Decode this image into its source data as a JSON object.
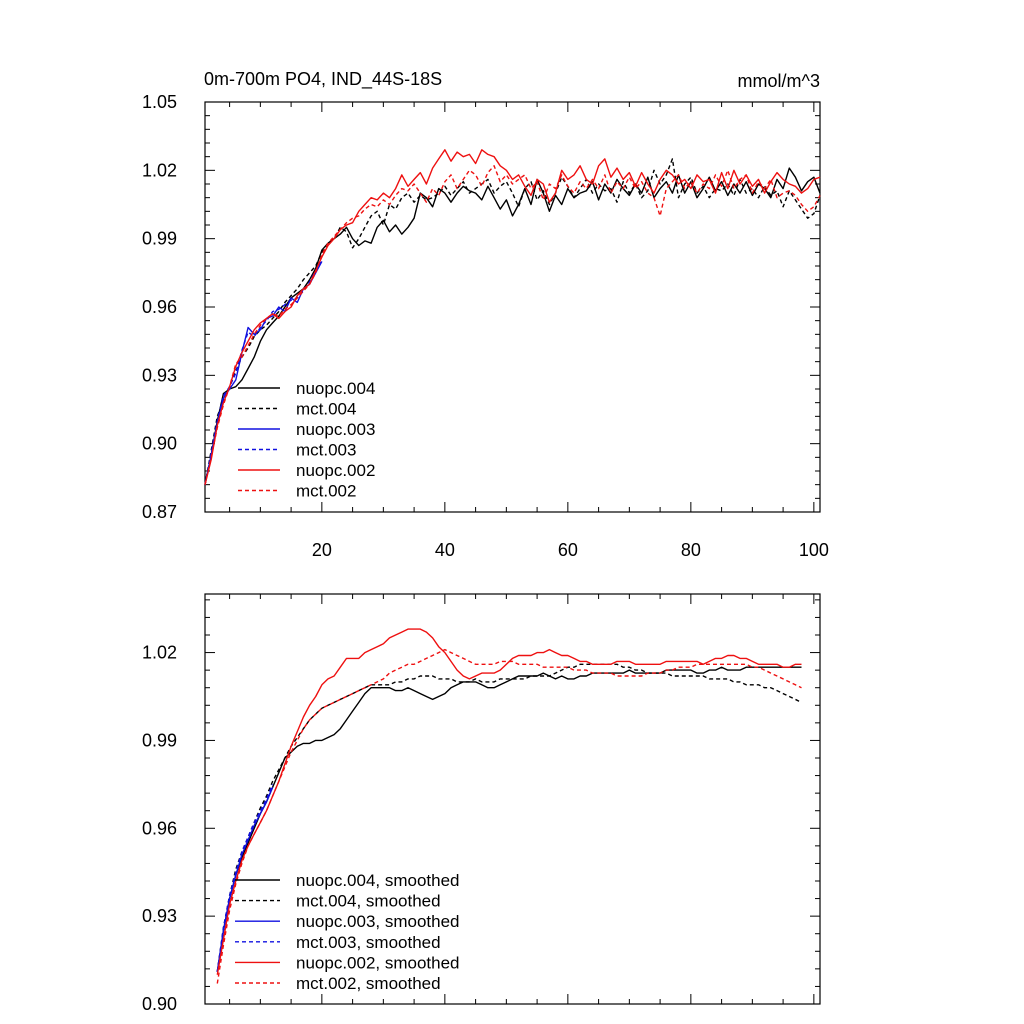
{
  "chart_data": [
    {
      "type": "line",
      "title": "0m-700m PO4, IND_44S-18S",
      "units": "mmol/m^3",
      "xlim": [
        1,
        101
      ],
      "ylim": [
        0.87,
        1.05
      ],
      "yticks": [
        "0.87",
        "0.90",
        "0.93",
        "0.96",
        "0.99",
        "1.02",
        "1.05"
      ],
      "xticks": [
        "20",
        "40",
        "60",
        "80",
        "100"
      ],
      "legend_position": "lower-left",
      "series": [
        {
          "name": "nuopc.004",
          "color": "#000000",
          "dash": "solid",
          "x_start": 1,
          "values": [
            0.882,
            0.895,
            0.91,
            0.922,
            0.924,
            0.925,
            0.928,
            0.933,
            0.938,
            0.945,
            0.95,
            0.953,
            0.956,
            0.96,
            0.964,
            0.966,
            0.968,
            0.972,
            0.977,
            0.985,
            0.988,
            0.99,
            0.992,
            0.995,
            0.99,
            0.987,
            0.989,
            0.988,
            0.995,
            0.998,
            0.993,
            0.996,
            0.992,
            0.995,
            0.999,
            1.01,
            1.008,
            1.004,
            1.012,
            1.01,
            1.006,
            1.01,
            1.013,
            1.011,
            1.01,
            1.007,
            1.013,
            1.008,
            1.003,
            1.007,
            1.0,
            1.005,
            1.012,
            1.005,
            1.016,
            1.01,
            1.002,
            1.009,
            1.005,
            1.012,
            1.008,
            1.01,
            1.011,
            1.015,
            1.007,
            1.014,
            1.01,
            1.016,
            1.012,
            1.009,
            1.014,
            1.01,
            1.017,
            1.008,
            1.012,
            1.015,
            1.01,
            1.018,
            1.01,
            1.015,
            1.008,
            1.012,
            1.017,
            1.011,
            1.015,
            1.009,
            1.014,
            1.01,
            1.015,
            1.009,
            1.014,
            1.012,
            1.008,
            1.016,
            1.012,
            1.021,
            1.017,
            1.011,
            1.015,
            1.017,
            1.01
          ]
        },
        {
          "name": "mct.004",
          "color": "#000000",
          "dash": "dashed",
          "x_start": 1,
          "values": [
            0.882,
            0.897,
            0.912,
            0.919,
            0.925,
            0.932,
            0.938,
            0.942,
            0.947,
            0.95,
            0.952,
            0.955,
            0.958,
            0.962,
            0.965,
            0.968,
            0.972,
            0.975,
            0.978,
            0.984,
            0.988,
            0.99,
            0.995,
            0.993,
            0.986,
            0.99,
            0.995,
            1.0,
            1.002,
            0.996,
            1.005,
            1.003,
            1.008,
            1.01,
            1.006,
            1.009,
            1.007,
            1.008,
            1.01,
            1.013,
            1.009,
            1.012,
            1.015,
            1.01,
            1.012,
            1.014,
            1.016,
            1.01,
            1.013,
            1.015,
            1.01,
            1.004,
            1.012,
            1.015,
            1.007,
            1.011,
            1.005,
            1.01,
            1.017,
            1.013,
            1.008,
            1.012,
            1.016,
            1.01,
            1.014,
            1.011,
            1.012,
            1.006,
            1.015,
            1.01,
            1.014,
            1.008,
            1.011,
            1.02,
            1.014,
            1.018,
            1.025,
            1.008,
            1.014,
            1.017,
            1.01,
            1.013,
            1.008,
            1.012,
            1.011,
            1.014,
            1.009,
            1.016,
            1.01,
            1.012,
            1.008,
            1.013,
            1.009,
            1.011,
            1.004,
            1.011,
            1.007,
            1.003,
            0.999,
            1.001,
            1.009
          ]
        },
        {
          "name": "nuopc.003",
          "color": "#1010e0",
          "dash": "solid",
          "x_start": 1,
          "values": [
            0.882,
            0.895,
            0.909,
            0.92,
            0.924,
            0.928,
            0.94,
            0.951,
            0.948,
            0.95,
            0.955,
            0.956,
            0.96,
            0.958,
            0.964,
            0.962,
            0.968,
            0.97,
            0.975,
            0.98
          ]
        },
        {
          "name": "mct.003",
          "color": "#1010e0",
          "dash": "dashed",
          "x_start": 1,
          "values": [
            0.882,
            0.896,
            0.91,
            0.921,
            0.925,
            0.931,
            0.941,
            0.949,
            0.947,
            0.951,
            0.954,
            0.958,
            0.959,
            0.961,
            0.963,
            0.964,
            0.967,
            0.971,
            0.976,
            0.981
          ]
        },
        {
          "name": "nuopc.002",
          "color": "#ee1010",
          "dash": "solid",
          "x_start": 1,
          "values": [
            0.882,
            0.893,
            0.908,
            0.918,
            0.925,
            0.934,
            0.94,
            0.945,
            0.95,
            0.953,
            0.955,
            0.957,
            0.955,
            0.958,
            0.96,
            0.965,
            0.968,
            0.97,
            0.976,
            0.982,
            0.987,
            0.99,
            0.994,
            0.996,
            0.997,
            1.002,
            1.005,
            1.008,
            1.007,
            1.01,
            1.008,
            1.012,
            1.018,
            1.013,
            1.016,
            1.019,
            1.014,
            1.021,
            1.025,
            1.029,
            1.024,
            1.028,
            1.026,
            1.027,
            1.023,
            1.029,
            1.027,
            1.026,
            1.022,
            1.02,
            1.016,
            1.018,
            1.013,
            1.009,
            1.016,
            1.014,
            1.006,
            1.01,
            1.02,
            1.016,
            1.018,
            1.022,
            1.016,
            1.014,
            1.022,
            1.025,
            1.017,
            1.021,
            1.016,
            1.019,
            1.013,
            1.019,
            1.014,
            1.01,
            1.016,
            1.02,
            1.018,
            1.014,
            1.016,
            1.012,
            1.018,
            1.015,
            1.016,
            1.01,
            1.019,
            1.012,
            1.02,
            1.014,
            1.018,
            1.013,
            1.016,
            1.01,
            1.015,
            1.019,
            1.016,
            1.014,
            1.013,
            1.01,
            1.012,
            1.016,
            1.017
          ]
        },
        {
          "name": "mct.002",
          "color": "#ee1010",
          "dash": "dashed",
          "x_start": 1,
          "values": [
            0.882,
            0.894,
            0.907,
            0.917,
            0.925,
            0.935,
            0.938,
            0.943,
            0.948,
            0.952,
            0.955,
            0.957,
            0.956,
            0.959,
            0.961,
            0.964,
            0.967,
            0.97,
            0.975,
            0.983,
            0.988,
            0.991,
            0.994,
            0.997,
            0.999,
            1.0,
            1.003,
            1.005,
            1.004,
            1.007,
            1.005,
            1.009,
            1.012,
            1.011,
            1.014,
            1.01,
            1.006,
            1.012,
            1.009,
            1.015,
            1.018,
            1.012,
            1.016,
            1.02,
            1.018,
            1.013,
            1.019,
            1.022,
            1.015,
            1.018,
            1.014,
            1.016,
            1.018,
            1.012,
            1.015,
            1.007,
            1.014,
            1.012,
            1.018,
            1.013,
            1.01,
            1.015,
            1.012,
            1.016,
            1.012,
            1.018,
            1.01,
            1.015,
            1.012,
            1.017,
            1.012,
            1.015,
            1.01,
            1.008,
            1.0,
            1.012,
            1.015,
            1.018,
            1.012,
            1.015,
            1.01,
            1.014,
            1.012,
            1.018,
            1.013,
            1.02,
            1.012,
            1.016,
            1.018,
            1.01,
            1.015,
            1.012,
            1.016,
            1.008,
            1.01,
            1.011,
            1.009,
            1.005,
            1.002,
            1.004,
            1.009
          ]
        }
      ]
    },
    {
      "type": "line",
      "xlim": [
        1,
        101
      ],
      "ylim": [
        0.9,
        1.04
      ],
      "yticks": [
        "0.90",
        "0.93",
        "0.96",
        "0.99",
        "1.02"
      ],
      "legend_position": "lower-left",
      "series": [
        {
          "name": "nuopc.004, smoothed",
          "color": "#000000",
          "dash": "solid",
          "x_start": 3,
          "values": [
            0.911,
            0.925,
            0.936,
            0.944,
            0.95,
            0.955,
            0.96,
            0.965,
            0.969,
            0.974,
            0.979,
            0.984,
            0.986,
            0.988,
            0.989,
            0.989,
            0.99,
            0.99,
            0.991,
            0.992,
            0.994,
            0.997,
            1.0,
            1.003,
            1.006,
            1.008,
            1.008,
            1.008,
            1.008,
            1.007,
            1.007,
            1.008,
            1.007,
            1.006,
            1.005,
            1.004,
            1.005,
            1.006,
            1.008,
            1.009,
            1.01,
            1.01,
            1.01,
            1.009,
            1.008,
            1.008,
            1.009,
            1.01,
            1.011,
            1.012,
            1.012,
            1.012,
            1.012,
            1.013,
            1.012,
            1.011,
            1.012,
            1.011,
            1.011,
            1.012,
            1.012,
            1.013,
            1.013,
            1.013,
            1.013,
            1.013,
            1.013,
            1.014,
            1.013,
            1.013,
            1.013,
            1.013,
            1.013,
            1.014,
            1.014,
            1.014,
            1.014,
            1.014,
            1.013,
            1.013,
            1.014,
            1.014,
            1.015,
            1.014,
            1.014,
            1.014,
            1.015,
            1.015,
            1.015,
            1.015,
            1.015,
            1.015,
            1.015,
            1.015,
            1.015,
            1.015
          ]
        },
        {
          "name": "mct.004, smoothed",
          "color": "#000000",
          "dash": "dashed",
          "x_start": 3,
          "values": [
            0.911,
            0.926,
            0.937,
            0.946,
            0.952,
            0.957,
            0.962,
            0.967,
            0.971,
            0.976,
            0.98,
            0.984,
            0.988,
            0.991,
            0.994,
            0.997,
            0.999,
            1.001,
            1.002,
            1.003,
            1.004,
            1.005,
            1.006,
            1.007,
            1.008,
            1.009,
            1.009,
            1.009,
            1.009,
            1.01,
            1.01,
            1.011,
            1.011,
            1.012,
            1.012,
            1.012,
            1.011,
            1.011,
            1.011,
            1.01,
            1.01,
            1.01,
            1.011,
            1.01,
            1.01,
            1.01,
            1.011,
            1.011,
            1.011,
            1.011,
            1.011,
            1.012,
            1.012,
            1.012,
            1.012,
            1.013,
            1.014,
            1.015,
            1.015,
            1.016,
            1.016,
            1.016,
            1.016,
            1.016,
            1.016,
            1.016,
            1.015,
            1.015,
            1.014,
            1.014,
            1.013,
            1.013,
            1.013,
            1.013,
            1.012,
            1.012,
            1.012,
            1.012,
            1.012,
            1.012,
            1.011,
            1.011,
            1.011,
            1.011,
            1.01,
            1.01,
            1.009,
            1.009,
            1.009,
            1.008,
            1.008,
            1.007,
            1.006,
            1.005,
            1.004,
            1.003
          ]
        },
        {
          "name": "nuopc.003, smoothed",
          "color": "#1010e0",
          "dash": "solid",
          "x_start": 3,
          "values": [
            0.911,
            0.925,
            0.936,
            0.944,
            0.951,
            0.956,
            0.961,
            0.965,
            0.969,
            0.974
          ]
        },
        {
          "name": "mct.003, smoothed",
          "color": "#1010e0",
          "dash": "dashed",
          "x_start": 3,
          "values": [
            0.911,
            0.926,
            0.937,
            0.945,
            0.952,
            0.957,
            0.962,
            0.966,
            0.97,
            0.975
          ]
        },
        {
          "name": "nuopc.002, smoothed",
          "color": "#ee1010",
          "dash": "solid",
          "x_start": 3,
          "values": [
            0.91,
            0.922,
            0.934,
            0.942,
            0.949,
            0.954,
            0.958,
            0.962,
            0.966,
            0.971,
            0.976,
            0.982,
            0.988,
            0.993,
            0.998,
            1.002,
            1.005,
            1.009,
            1.011,
            1.012,
            1.015,
            1.018,
            1.018,
            1.018,
            1.02,
            1.021,
            1.022,
            1.023,
            1.025,
            1.026,
            1.027,
            1.028,
            1.028,
            1.028,
            1.027,
            1.025,
            1.022,
            1.02,
            1.017,
            1.014,
            1.012,
            1.011,
            1.012,
            1.013,
            1.013,
            1.013,
            1.014,
            1.016,
            1.018,
            1.019,
            1.019,
            1.019,
            1.02,
            1.02,
            1.021,
            1.02,
            1.019,
            1.019,
            1.018,
            1.017,
            1.017,
            1.016,
            1.016,
            1.016,
            1.016,
            1.017,
            1.017,
            1.017,
            1.016,
            1.016,
            1.016,
            1.016,
            1.016,
            1.017,
            1.017,
            1.017,
            1.017,
            1.017,
            1.017,
            1.016,
            1.017,
            1.018,
            1.018,
            1.019,
            1.019,
            1.018,
            1.018,
            1.017,
            1.016,
            1.016,
            1.016,
            1.016,
            1.015,
            1.015,
            1.016,
            1.016
          ]
        },
        {
          "name": "mct.002, smoothed",
          "color": "#ee1010",
          "dash": "dashed",
          "x_start": 3,
          "values": [
            0.907,
            0.92,
            0.932,
            0.941,
            0.948,
            0.954,
            0.958,
            0.962,
            0.966,
            0.971,
            0.976,
            0.981,
            0.986,
            0.99,
            0.994,
            0.997,
            0.999,
            1.001,
            1.002,
            1.003,
            1.004,
            1.005,
            1.006,
            1.007,
            1.008,
            1.009,
            1.01,
            1.011,
            1.013,
            1.014,
            1.015,
            1.016,
            1.016,
            1.017,
            1.018,
            1.019,
            1.02,
            1.021,
            1.02,
            1.019,
            1.018,
            1.017,
            1.016,
            1.016,
            1.016,
            1.016,
            1.017,
            1.017,
            1.017,
            1.016,
            1.016,
            1.016,
            1.016,
            1.015,
            1.015,
            1.015,
            1.015,
            1.015,
            1.014,
            1.014,
            1.014,
            1.013,
            1.013,
            1.013,
            1.013,
            1.012,
            1.012,
            1.012,
            1.012,
            1.012,
            1.013,
            1.013,
            1.013,
            1.014,
            1.014,
            1.015,
            1.015,
            1.015,
            1.016,
            1.016,
            1.016,
            1.016,
            1.016,
            1.016,
            1.016,
            1.016,
            1.016,
            1.015,
            1.015,
            1.014,
            1.013,
            1.012,
            1.011,
            1.01,
            1.009,
            1.008
          ]
        }
      ]
    }
  ]
}
